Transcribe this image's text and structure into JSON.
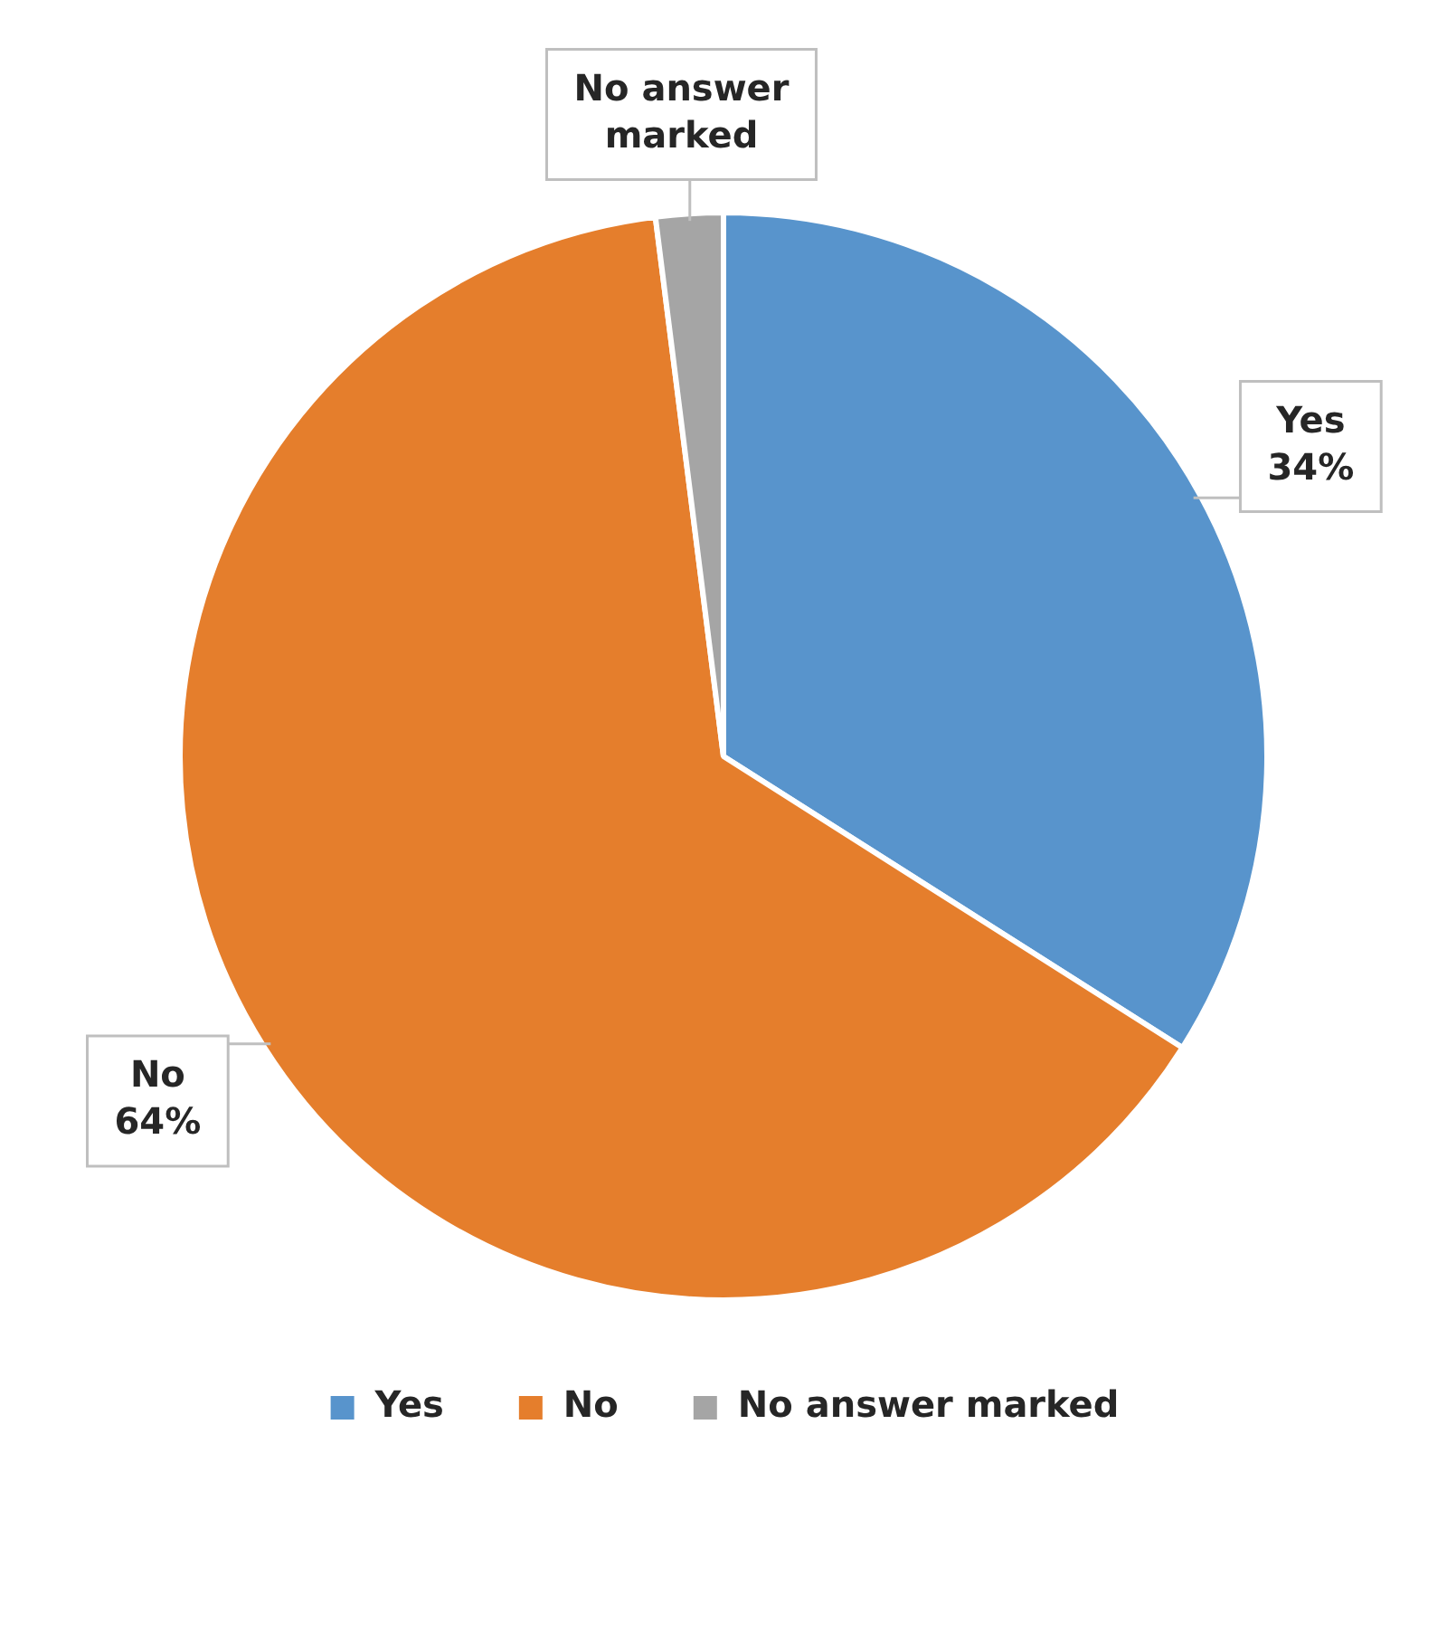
{
  "chart_data": {
    "type": "pie",
    "categories": [
      "Yes",
      "No",
      "No answer marked"
    ],
    "values": [
      34,
      64,
      2
    ],
    "colors": [
      "#5894cc",
      "#e57e2c",
      "#a5a5a5"
    ],
    "value_labels": [
      "34%",
      "64%",
      null
    ],
    "legend": "bottom"
  }
}
